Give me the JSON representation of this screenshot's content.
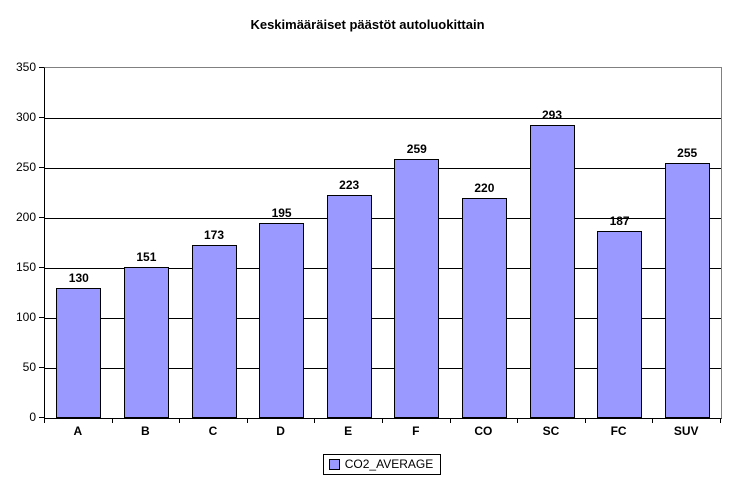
{
  "chart_data": {
    "type": "bar",
    "title": "Keskimääräiset päästöt autoluokittain",
    "categories": [
      "A",
      "B",
      "C",
      "D",
      "E",
      "F",
      "CO",
      "SC",
      "FC",
      "SUV"
    ],
    "values": [
      130,
      151,
      173,
      195,
      223,
      259,
      220,
      293,
      187,
      255
    ],
    "series": [
      {
        "name": "CO2_AVERAGE",
        "values": [
          130,
          151,
          173,
          195,
          223,
          259,
          220,
          293,
          187,
          255
        ]
      }
    ],
    "xlabel": "",
    "ylabel": "",
    "ylim": [
      0,
      350
    ],
    "ytick_step": 50,
    "ytick_labels": [
      "0",
      "50",
      "100",
      "150",
      "200",
      "250",
      "300",
      "350"
    ],
    "grid": true,
    "data_labels": true,
    "legend": {
      "label": "CO2_AVERAGE",
      "position": "bottom"
    },
    "colors": {
      "bar_fill": "#9999FF",
      "bar_border": "#000000",
      "gridline": "#000000",
      "plot_border": "#808080",
      "axis": "#000000",
      "text": "#000000",
      "background": "#FFFFFF"
    }
  }
}
